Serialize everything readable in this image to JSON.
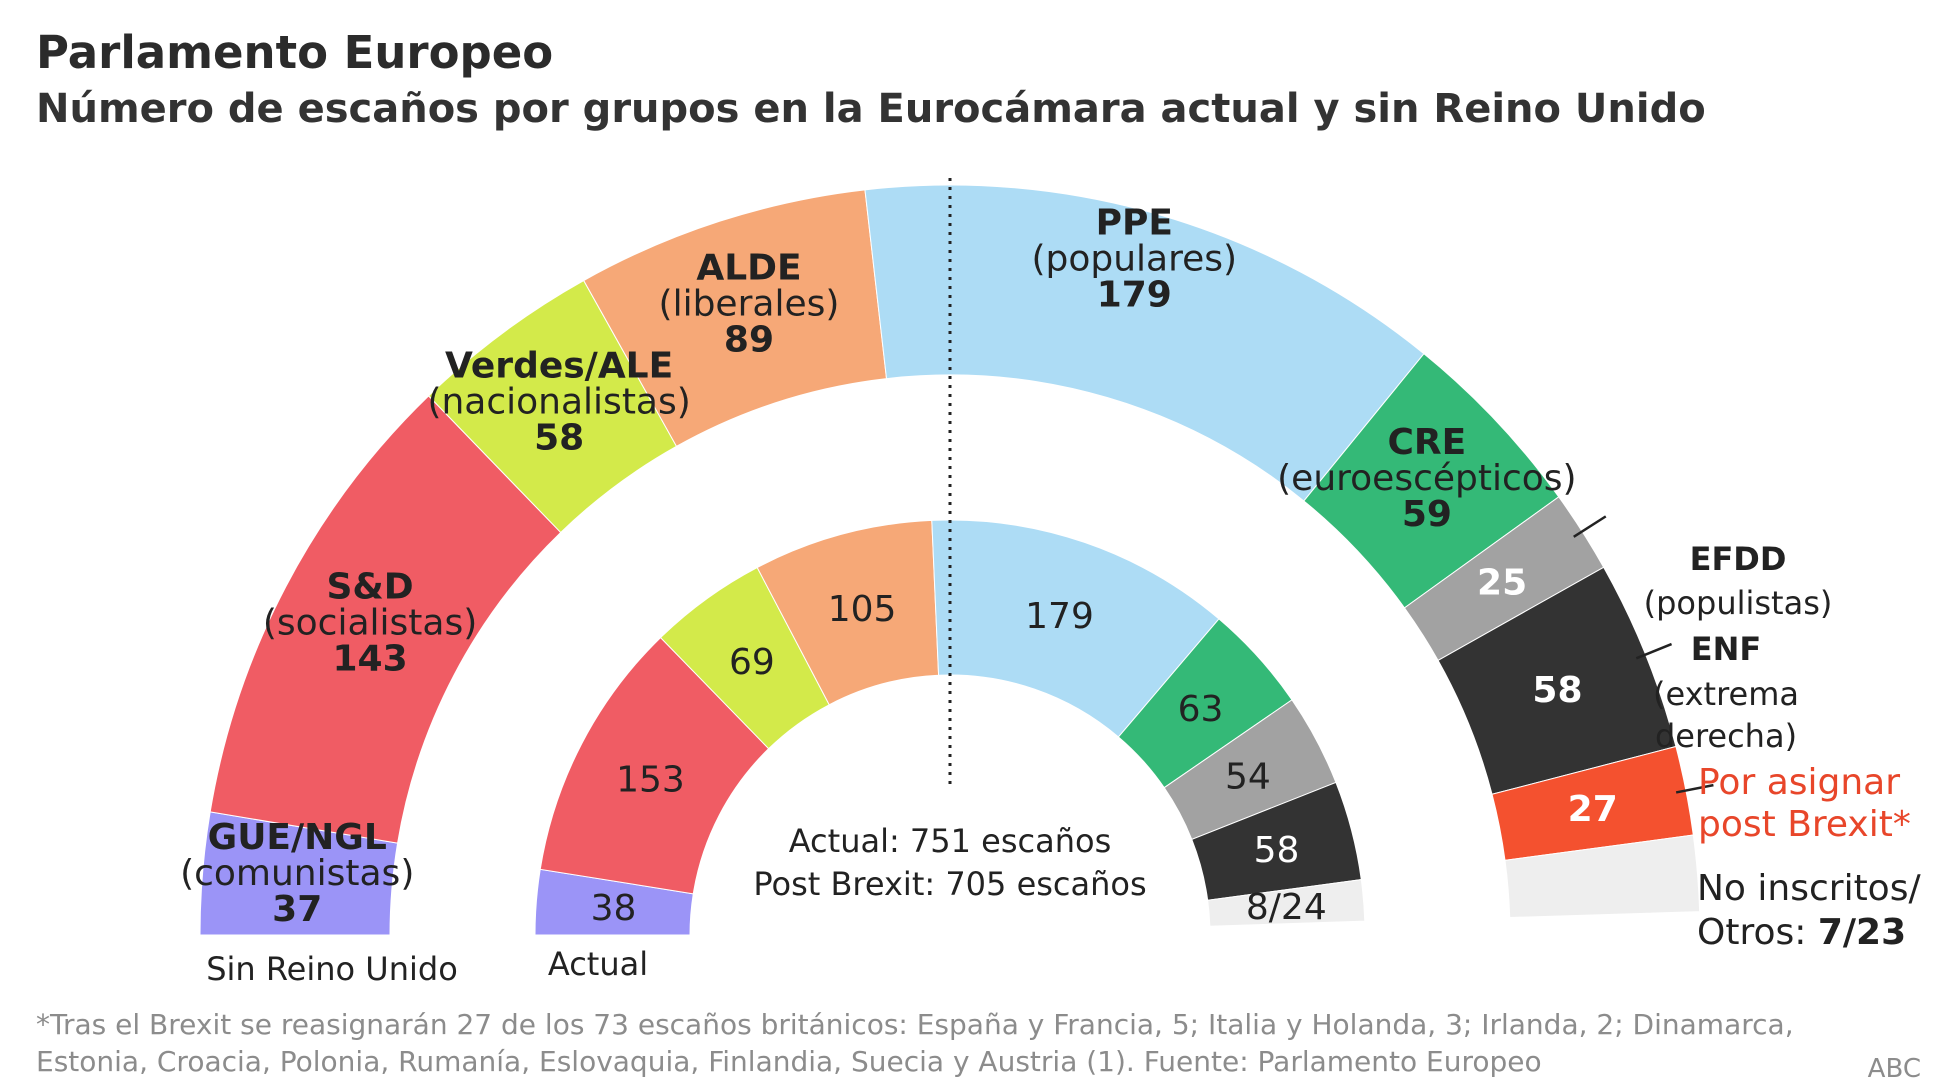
{
  "title": "Parlamento Europeo",
  "subtitle": "Número de escaños por grupos en la Eurocámara actual y sin Reino Unido",
  "footnote_line1": "*Tras el Brexit se reasignarán 27 de los 73 escaños británicos: España y Francia, 5; Italia y Holanda, 3; Irlanda, 2; Dinamarca,",
  "footnote_line2": "Estonia, Croacia, Polonia, Rumanía, Eslovaquia, Finlandia, Suecia y Austria (1). Fuente: Parlamento Europeo",
  "source": "ABC",
  "center_text": {
    "line1": "Actual: 751 escaños",
    "line2": "Post Brexit: 705 escaños"
  },
  "ring_labels": {
    "outer": "Sin Reino Unido",
    "inner": "Actual"
  },
  "chart_data": {
    "type": "semicircle",
    "total_current": 751,
    "total_post_brexit": 705,
    "groups": [
      {
        "name": "GUE/NGL",
        "desc": "(comunistas)",
        "current": 38,
        "post_brexit": 37,
        "color": "#9b94f7"
      },
      {
        "name": "S&D",
        "desc": "(socialistas)",
        "current": 153,
        "post_brexit": 143,
        "color": "#f05c64"
      },
      {
        "name": "Verdes/ALE",
        "desc": "(nacionalistas)",
        "current": 69,
        "post_brexit": 58,
        "color": "#d3ea4a"
      },
      {
        "name": "ALDE",
        "desc": "(liberales)",
        "current": 105,
        "post_brexit": 89,
        "color": "#f6a877"
      },
      {
        "name": "PPE",
        "desc": "(populares)",
        "current": 179,
        "post_brexit": 179,
        "color": "#addcf5"
      },
      {
        "name": "CRE",
        "desc": "(euroescépticos)",
        "current": 63,
        "post_brexit": 59,
        "color": "#34b977"
      },
      {
        "name": "EFDD",
        "desc": "(populistas)",
        "current": 54,
        "post_brexit": 25,
        "color": "#a2a2a2"
      },
      {
        "name": "ENF",
        "desc_lines": [
          "(extrema",
          "derecha)"
        ],
        "current": 58,
        "post_brexit": 58,
        "color": "#333333"
      },
      {
        "name_lines": [
          "Por asignar",
          "post Brexit*"
        ],
        "current": 0,
        "post_brexit": 27,
        "color": "#f4512f"
      },
      {
        "name_lines": [
          "No inscritos/"
        ],
        "label_prefix": "Otros: ",
        "label_value": "7/23",
        "current": 24,
        "post_brexit": 23,
        "current_label": "8/24",
        "color": "#eeeeee"
      }
    ]
  }
}
